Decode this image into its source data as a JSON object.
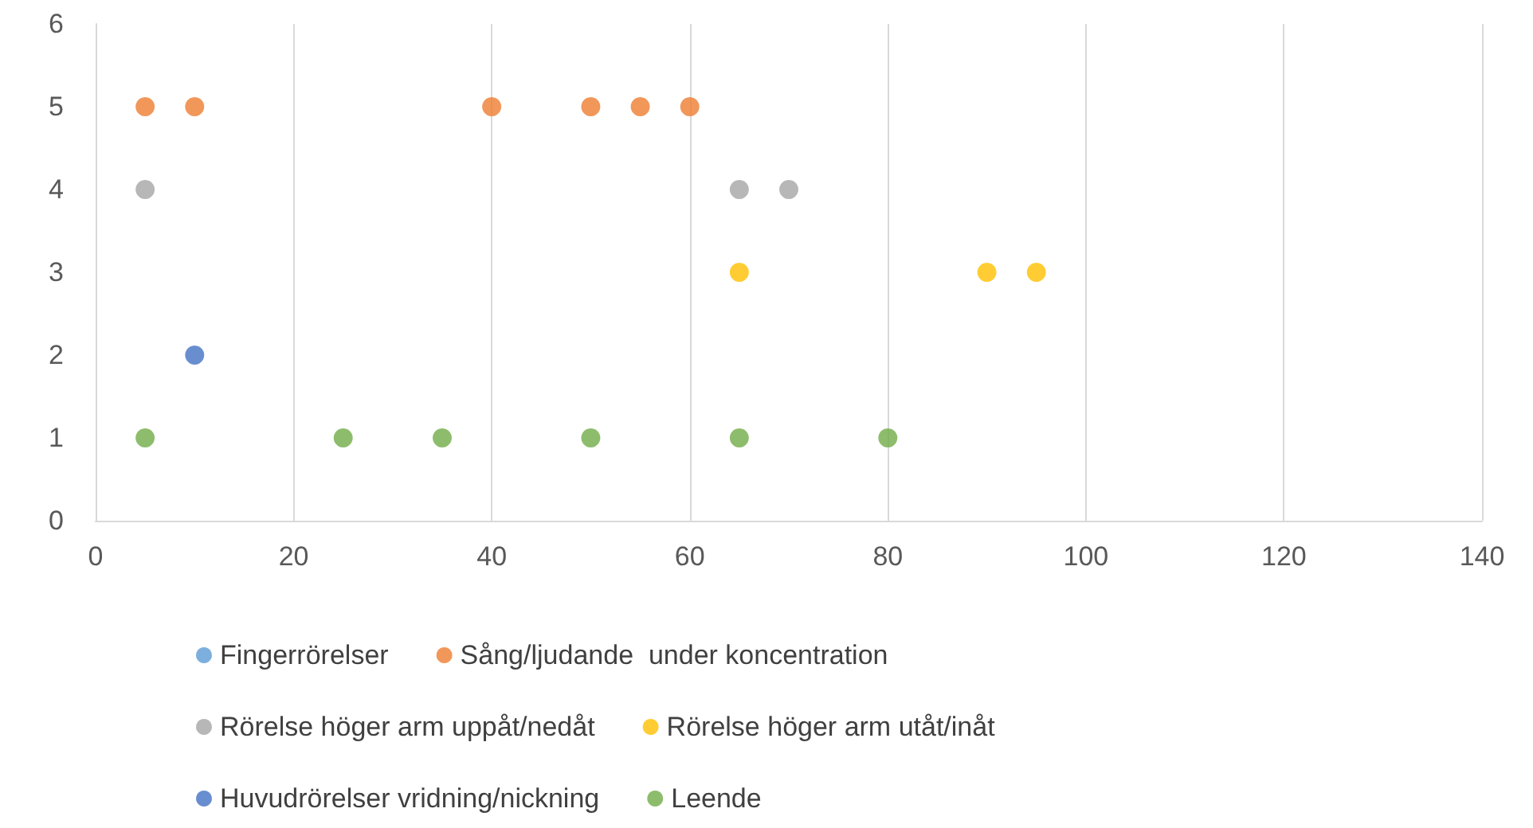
{
  "chart_data": {
    "type": "scatter",
    "xlim": [
      0,
      140
    ],
    "xticks": [
      0,
      20,
      40,
      60,
      80,
      100,
      120,
      140
    ],
    "ylim": [
      0,
      6
    ],
    "yticks": [
      0,
      1,
      2,
      3,
      4,
      5,
      6
    ],
    "grid": "x",
    "legend": "bottom",
    "marker": "circle",
    "series": [
      {
        "name": "Fingerrörelser",
        "color": "#5b9bd5"
      },
      {
        "name": "Sång/ljudande  under koncentration",
        "color": "#ed7d31",
        "x": [
          5,
          10,
          40,
          50,
          55,
          60
        ],
        "values": [
          5,
          5,
          5,
          5,
          5,
          5
        ]
      },
      {
        "name": "Rörelse höger arm uppåt/nedåt",
        "color": "#a5a5a5",
        "x": [
          5,
          65,
          70
        ],
        "values": [
          4,
          4,
          4
        ]
      },
      {
        "name": "Rörelse höger arm utåt/inåt",
        "color": "#ffc000",
        "x": [
          65,
          90,
          95
        ],
        "values": [
          3,
          3,
          3
        ]
      },
      {
        "name": "Huvudrörelser vridning/nickning",
        "color": "#4472c4",
        "x": [
          10
        ],
        "values": [
          2
        ]
      },
      {
        "name": "Leende",
        "color": "#70ad47",
        "x": [
          5,
          25,
          35,
          50,
          65,
          80
        ],
        "values": [
          1,
          1,
          1,
          1,
          1,
          1
        ]
      }
    ]
  }
}
